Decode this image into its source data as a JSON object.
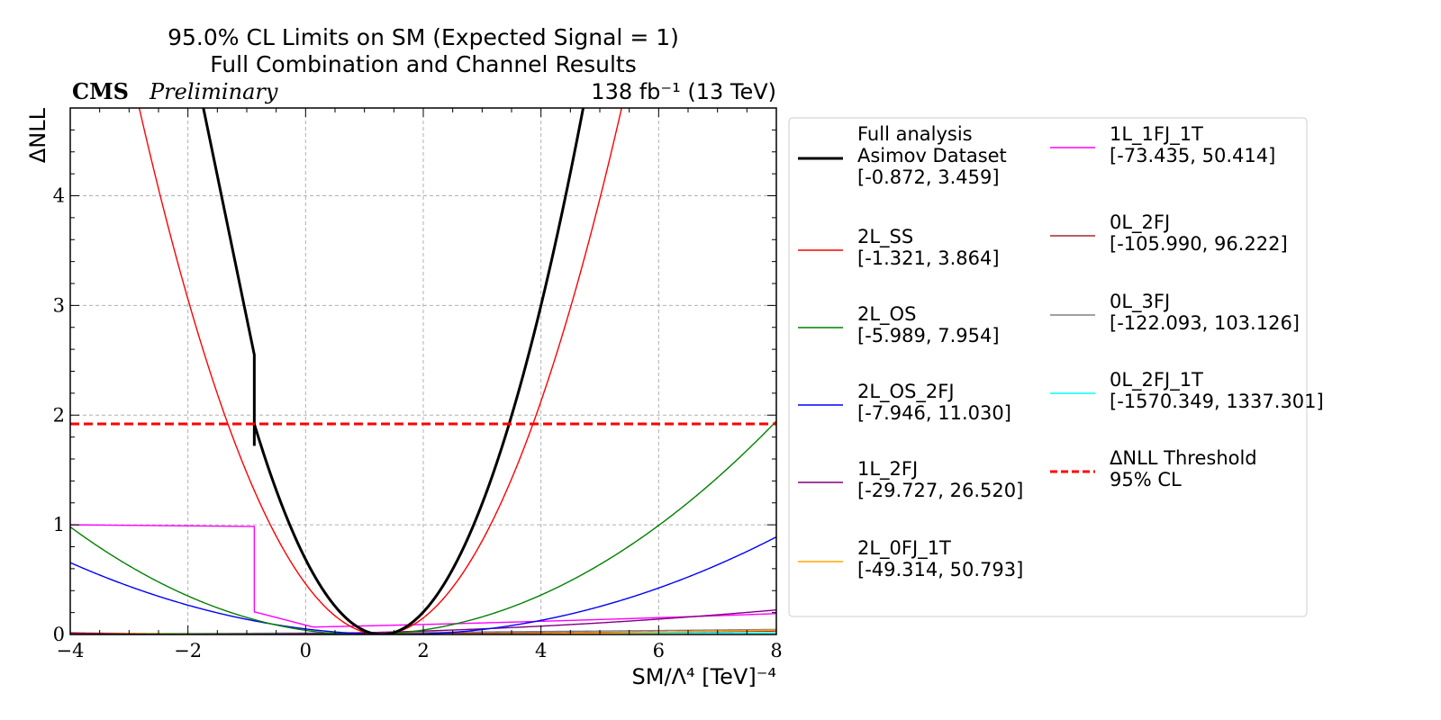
{
  "chart_data": {
    "type": "line",
    "title": "95.0% CL Limits on SM (Expected Signal = 1)",
    "subtitle": "Full Combination and Channel Results",
    "experiment": "CMS",
    "status": "Preliminary",
    "luminosity": "138 fb⁻¹ (13 TeV)",
    "xlabel": "SM/Λ⁴ [TeV]⁻⁴",
    "ylabel": "ΔNLL",
    "xlim": [
      -4,
      8
    ],
    "ylim": [
      0,
      4.8
    ],
    "xticks": [
      "−4",
      "−2",
      "0",
      "2",
      "4",
      "6",
      "8"
    ],
    "yticks": [
      "0",
      "1",
      "2",
      "3",
      "4"
    ],
    "grid": true,
    "legend_placement": "outside-right",
    "threshold": {
      "y": 1.92,
      "label_line1": "ΔNLL Threshold",
      "label_line2": "95% CL",
      "color": "#ff0000"
    },
    "series": [
      {
        "label_lines": [
          "Full analysis",
          "Asimov Dataset"
        ],
        "interval": "[-0.872, 3.459]",
        "color": "#000000",
        "lo": -0.872,
        "hi": 3.459,
        "bold": true
      },
      {
        "label_lines": [
          "2L_SS"
        ],
        "interval": "[-1.321, 3.864]",
        "color": "#ff0000",
        "lo": -1.321,
        "hi": 3.864
      },
      {
        "label_lines": [
          "2L_OS"
        ],
        "interval": "[-5.989, 7.954]",
        "color": "#008000",
        "lo": -5.989,
        "hi": 7.954
      },
      {
        "label_lines": [
          "2L_OS_2FJ"
        ],
        "interval": "[-7.946, 11.030]",
        "color": "#0000ff",
        "lo": -7.946,
        "hi": 11.03
      },
      {
        "label_lines": [
          "1L_2FJ"
        ],
        "interval": "[-29.727, 26.520]",
        "color": "#800080",
        "lo": -29.727,
        "hi": 26.52
      },
      {
        "label_lines": [
          "2L_0FJ_1T"
        ],
        "interval": "[-49.314, 50.793]",
        "color": "#ffa500",
        "lo": -49.314,
        "hi": 50.793
      },
      {
        "label_lines": [
          "1L_1FJ_1T"
        ],
        "interval": "[-73.435, 50.414]",
        "color": "#ff00ff",
        "lo": -73.435,
        "hi": 50.414,
        "step": true
      },
      {
        "label_lines": [
          "0L_2FJ"
        ],
        "interval": "[-105.990, 96.222]",
        "color": "#a52a2a",
        "lo": -105.99,
        "hi": 96.222
      },
      {
        "label_lines": [
          "0L_3FJ"
        ],
        "interval": "[-122.093, 103.126]",
        "color": "#808080",
        "lo": -122.093,
        "hi": 103.126
      },
      {
        "label_lines": [
          "0L_2FJ_1T"
        ],
        "interval": "[-1570.349, 1337.301]",
        "color": "#00ffff",
        "lo": -1570.349,
        "hi": 1337.301
      }
    ]
  }
}
